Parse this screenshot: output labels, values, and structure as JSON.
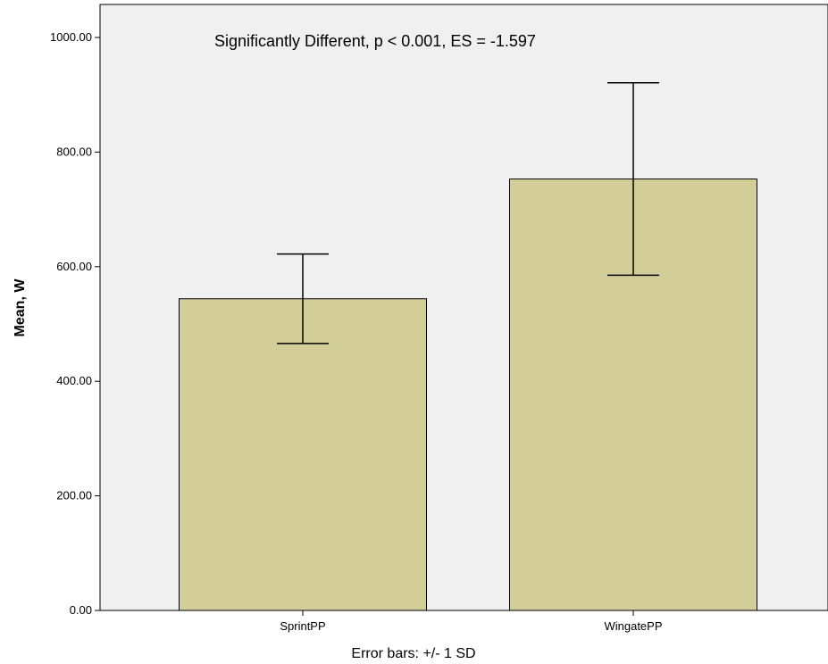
{
  "chart_data": {
    "type": "bar",
    "categories": [
      "SprintPP",
      "WingatePP"
    ],
    "values": [
      544,
      753
    ],
    "error_bars": {
      "type": "+/- 1 SD",
      "sd": [
        78,
        168
      ]
    },
    "title": "",
    "xlabel": "",
    "ylabel": "Mean, W",
    "ylim": [
      0,
      1000
    ],
    "ytick_values": [
      0,
      200,
      400,
      600,
      800,
      1000
    ],
    "ytick_labels": [
      "0.00",
      "200.00",
      "400.00",
      "600.00",
      "800.00",
      "1000.00"
    ],
    "annotation": "Significantly Different, p < 0.001, ES = -1.597",
    "footnote": "Error bars: +/- 1 SD",
    "grid": false,
    "legend": "none"
  },
  "colors": {
    "bar_fill": "#d3ce98",
    "plot_background": "#f0f0f0",
    "axis": "#000000"
  }
}
